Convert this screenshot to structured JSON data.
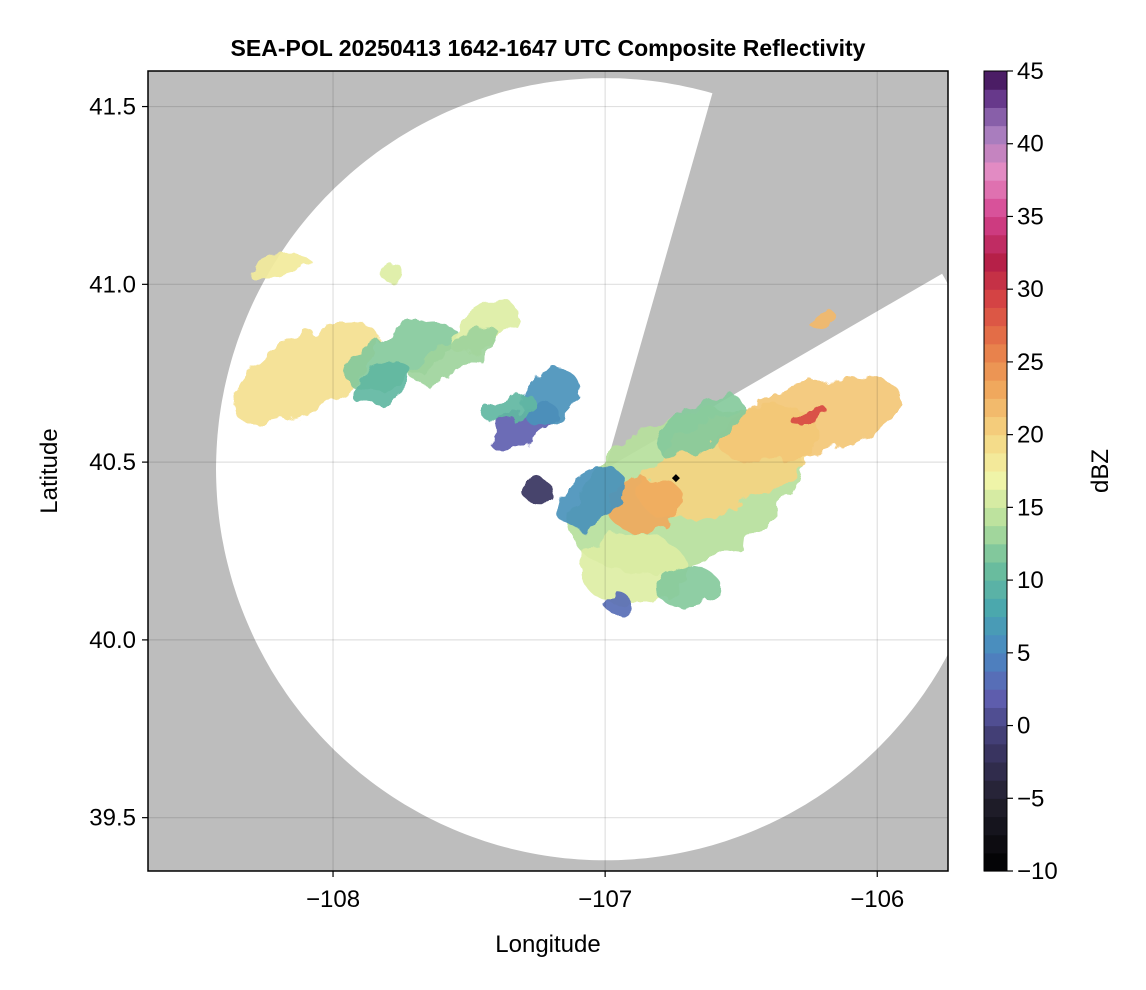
{
  "chart_data": {
    "type": "heatmap",
    "title": "SEA-POL 20250413 1642-1647 UTC Composite Reflectivity",
    "xlabel": "Longitude",
    "ylabel": "Latitude",
    "xlim": [
      -108.68,
      -105.74
    ],
    "ylim": [
      39.35,
      41.6
    ],
    "x_ticks": [
      -108,
      -107,
      -106
    ],
    "x_tick_labels": [
      "−108",
      "−107",
      "−106"
    ],
    "y_ticks": [
      39.5,
      40.0,
      40.5,
      41.0,
      41.5
    ],
    "y_tick_labels": [
      "39.5",
      "40.0",
      "40.5",
      "41.0",
      "41.5"
    ],
    "grid": true,
    "background_color": "#bdbdbd",
    "no_echo_color": "#ffffff",
    "radar": {
      "center_lon": -107.0,
      "center_lat": 40.48,
      "range_lon": 1.43,
      "range_lat": 1.1,
      "blocked_sectors_deg_from_north": [
        [
          16,
          60
        ]
      ]
    },
    "site_marker": {
      "lon": -106.74,
      "lat": 40.455
    },
    "colorbar": {
      "label": "dBZ",
      "min": -10,
      "max": 45,
      "ticks": [
        -10,
        -5,
        0,
        5,
        10,
        15,
        20,
        25,
        30,
        35,
        40,
        45
      ],
      "tick_labels": [
        "−10",
        "−5",
        "0",
        "5",
        "10",
        "15",
        "20",
        "25",
        "30",
        "35",
        "40",
        "45"
      ],
      "colormap_stops": [
        {
          "value": -10,
          "color": "#000000"
        },
        {
          "value": -5,
          "color": "#22202e"
        },
        {
          "value": -1,
          "color": "#3f3a6e"
        },
        {
          "value": 2,
          "color": "#5f5fb0"
        },
        {
          "value": 5,
          "color": "#4a88c2"
        },
        {
          "value": 8,
          "color": "#49a7ae"
        },
        {
          "value": 11,
          "color": "#6dbf9c"
        },
        {
          "value": 14,
          "color": "#b6df9c"
        },
        {
          "value": 17,
          "color": "#f1f5a8"
        },
        {
          "value": 20,
          "color": "#f5d582"
        },
        {
          "value": 23,
          "color": "#f0aa5e"
        },
        {
          "value": 26,
          "color": "#e77c49"
        },
        {
          "value": 29,
          "color": "#d84843"
        },
        {
          "value": 32,
          "color": "#b41e48"
        },
        {
          "value": 35,
          "color": "#d4438f"
        },
        {
          "value": 38,
          "color": "#e58cc3"
        },
        {
          "value": 41,
          "color": "#a07bbd"
        },
        {
          "value": 43,
          "color": "#6a3c8f"
        },
        {
          "value": 45,
          "color": "#3d0f52"
        }
      ]
    },
    "echoes": [
      {
        "lon": -108.1,
        "lat": 40.75,
        "rlon": 0.3,
        "rlat": 0.1,
        "rot": 30,
        "dbz": 19
      },
      {
        "lon": -107.75,
        "lat": 40.8,
        "rlon": 0.22,
        "rlat": 0.07,
        "rot": 25,
        "dbz": 12
      },
      {
        "lon": -107.82,
        "lat": 40.72,
        "rlon": 0.12,
        "rlat": 0.05,
        "rot": 25,
        "dbz": 10
      },
      {
        "lon": -107.45,
        "lat": 40.88,
        "rlon": 0.14,
        "rlat": 0.05,
        "rot": 35,
        "dbz": 16
      },
      {
        "lon": -107.55,
        "lat": 40.8,
        "rlon": 0.18,
        "rlat": 0.04,
        "rot": 30,
        "dbz": 13
      },
      {
        "lon": -107.3,
        "lat": 40.6,
        "rlon": 0.14,
        "rlat": 0.05,
        "rot": 28,
        "dbz": 2
      },
      {
        "lon": -107.2,
        "lat": 40.68,
        "rlon": 0.12,
        "rlat": 0.07,
        "rot": 45,
        "dbz": 6
      },
      {
        "lon": -107.35,
        "lat": 40.65,
        "rlon": 0.1,
        "rlat": 0.03,
        "rot": 20,
        "dbz": 10
      },
      {
        "lon": -108.2,
        "lat": 41.05,
        "rlon": 0.12,
        "rlat": 0.03,
        "rot": 10,
        "dbz": 18
      },
      {
        "lon": -107.78,
        "lat": 41.03,
        "rlon": 0.04,
        "rlat": 0.03,
        "rot": 0,
        "dbz": 16
      },
      {
        "lon": -107.25,
        "lat": 40.42,
        "rlon": 0.06,
        "rlat": 0.03,
        "rot": 0,
        "dbz": -2
      },
      {
        "lon": -106.7,
        "lat": 40.42,
        "rlon": 0.45,
        "rlat": 0.2,
        "rot": 25,
        "dbz": 14
      },
      {
        "lon": -106.55,
        "lat": 40.5,
        "rlon": 0.35,
        "rlat": 0.13,
        "rot": 25,
        "dbz": 20
      },
      {
        "lon": -106.25,
        "lat": 40.62,
        "rlon": 0.35,
        "rlat": 0.1,
        "rot": 15,
        "dbz": 21
      },
      {
        "lon": -106.25,
        "lat": 40.63,
        "rlon": 0.07,
        "rlat": 0.02,
        "rot": 20,
        "dbz": 29
      },
      {
        "lon": -106.85,
        "lat": 40.38,
        "rlon": 0.14,
        "rlat": 0.08,
        "rot": 10,
        "dbz": 23
      },
      {
        "lon": -106.9,
        "lat": 40.2,
        "rlon": 0.2,
        "rlat": 0.1,
        "rot": 0,
        "dbz": 16
      },
      {
        "lon": -106.7,
        "lat": 40.15,
        "rlon": 0.12,
        "rlat": 0.06,
        "rot": 0,
        "dbz": 12
      },
      {
        "lon": -106.65,
        "lat": 40.6,
        "rlon": 0.18,
        "rlat": 0.06,
        "rot": 30,
        "dbz": 12
      },
      {
        "lon": -106.2,
        "lat": 40.9,
        "rlon": 0.05,
        "rlat": 0.02,
        "rot": 30,
        "dbz": 22
      },
      {
        "lon": -107.05,
        "lat": 40.4,
        "rlon": 0.14,
        "rlat": 0.07,
        "rot": 40,
        "dbz": 6
      },
      {
        "lon": -106.95,
        "lat": 40.1,
        "rlon": 0.05,
        "rlat": 0.03,
        "rot": 0,
        "dbz": 3
      }
    ]
  }
}
